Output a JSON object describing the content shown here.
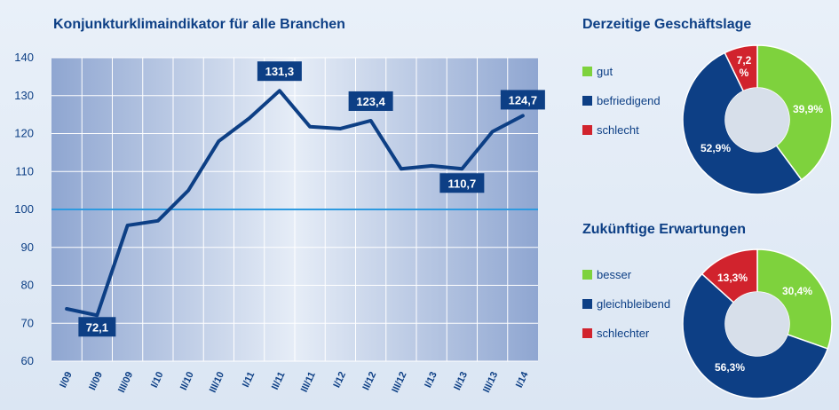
{
  "colors": {
    "navy": "#0d3f85",
    "line": "#0d3f85",
    "reference_line": "#2d9ae0",
    "green": "#7ed23d",
    "blue": "#0d3f85",
    "red": "#d1232d"
  },
  "chart_data": [
    {
      "type": "line",
      "title": "Konjunkturklimaindikator für alle Branchen",
      "xlabel": "",
      "ylabel": "",
      "ylim": [
        60,
        140
      ],
      "yticks": [
        60,
        70,
        80,
        90,
        100,
        110,
        120,
        130,
        140
      ],
      "reference_value": 100,
      "grid": true,
      "categories": [
        "I/09",
        "II/09",
        "III/09",
        "I/10",
        "II/10",
        "III/10",
        "I/11",
        "II/11",
        "III/11",
        "I/12",
        "II/12",
        "III/12",
        "I/13",
        "II/13",
        "III/13",
        "I/14"
      ],
      "x": [
        0,
        0.5,
        1,
        1.5,
        2,
        2.5,
        3,
        3.5,
        4,
        4.5,
        5,
        5.5,
        6,
        6.5,
        7,
        7.5,
        8,
        8.5,
        9,
        9.5,
        10,
        10.5,
        11,
        11.5,
        12,
        12.5,
        13,
        13.5,
        14,
        14.5,
        15
      ],
      "values": [
        73.8,
        72.1,
        95.8,
        97,
        105,
        118,
        124,
        131.3,
        121.8,
        121.3,
        123.4,
        110.7,
        111.5,
        110.7,
        120.5,
        124.7
      ],
      "x_positions": [
        0,
        1,
        2,
        3,
        4,
        5,
        6,
        7,
        8,
        9,
        10,
        11,
        12,
        13,
        14,
        15
      ],
      "annotations": [
        {
          "label": "72,1",
          "index": 1
        },
        {
          "label": "131,3",
          "index": 7
        },
        {
          "label": "123,4",
          "index": 10
        },
        {
          "label": "110,7",
          "index": 13
        },
        {
          "label": "124,7",
          "index": 15
        }
      ]
    },
    {
      "type": "pie",
      "title": "Derzeitige Geschäftslage",
      "legend": [
        "gut",
        "befriedigend",
        "schlecht"
      ],
      "values": [
        39.9,
        52.9,
        7.2
      ],
      "labels": [
        "39,9%",
        "52,9%",
        "7,2 %"
      ]
    },
    {
      "type": "pie",
      "title": "Zukünftige Erwartungen",
      "legend": [
        "besser",
        "gleichbleibend",
        "schlechter"
      ],
      "values": [
        30.4,
        56.3,
        13.3
      ],
      "labels": [
        "30,4%",
        "56,3%",
        "13,3%"
      ]
    }
  ]
}
